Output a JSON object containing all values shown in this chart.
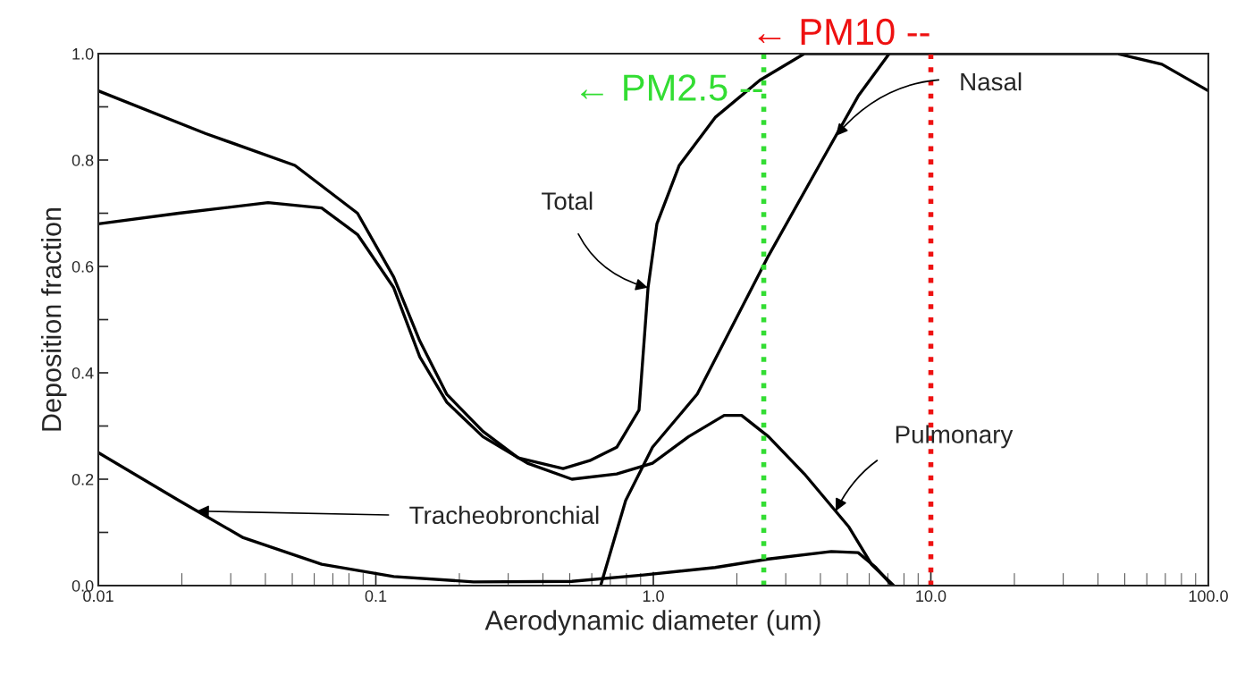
{
  "chart_data": {
    "type": "line",
    "xlabel": "Aerodynamic diameter (um)",
    "ylabel": "Deposition fraction",
    "log": "x",
    "xlim": [
      0.01,
      100
    ],
    "xticks": [
      {
        "value": 0.01,
        "label": "0.01"
      },
      {
        "value": 0.1,
        "label": "0.1"
      },
      {
        "value": 1,
        "label": "1.0"
      },
      {
        "value": 10,
        "label": "10.0"
      },
      {
        "value": 100,
        "label": "100.0"
      }
    ],
    "ylim": [
      0,
      1
    ],
    "yticks": [
      {
        "value": 0,
        "label": "0.0"
      },
      {
        "value": 0.1,
        "label": null
      },
      {
        "value": 0.2,
        "label": "0.2"
      },
      {
        "value": 0.3,
        "label": null
      },
      {
        "value": 0.4,
        "label": "0.4"
      },
      {
        "value": 0.5,
        "label": null
      },
      {
        "value": 0.6,
        "label": "0.6"
      },
      {
        "value": 0.7,
        "label": null
      },
      {
        "value": 0.8,
        "label": "0.8"
      },
      {
        "value": 0.9,
        "label": null
      },
      {
        "value": 1.0,
        "label": "1.0"
      }
    ],
    "grid": false,
    "legend": false,
    "marker": "none",
    "line_style": "solid",
    "series": [
      {
        "color": "#000000",
        "x": [
          0.01,
          0.0243,
          0.0511,
          0.0859,
          0.116,
          0.144,
          0.18,
          0.243,
          0.326,
          0.473,
          0.59,
          0.738,
          0.888,
          0.957,
          1.03,
          1.24,
          1.67,
          2.42,
          3.5,
          5.07,
          46.9,
          68,
          100
        ],
        "values": [
          0.93,
          0.85,
          0.79,
          0.7,
          0.58,
          0.46,
          0.36,
          0.29,
          0.24,
          0.22,
          0.235,
          0.26,
          0.33,
          0.56,
          0.68,
          0.79,
          0.88,
          0.95,
          1.0,
          1.0,
          1.0,
          0.98,
          0.93
        ]
      },
      {
        "color": "#000000",
        "x": [
          0.01,
          0.0195,
          0.0409,
          0.0638,
          0.0859,
          0.116,
          0.144,
          0.18,
          0.243,
          0.352,
          0.509,
          0.738,
          0.993,
          1.34,
          1.8,
          2.08,
          2.6,
          3.5,
          5.07,
          6.11,
          7.35
        ],
        "values": [
          0.68,
          0.7,
          0.72,
          0.71,
          0.66,
          0.56,
          0.43,
          0.345,
          0.28,
          0.23,
          0.2,
          0.21,
          0.23,
          0.28,
          0.32,
          0.32,
          0.28,
          0.21,
          0.11,
          0.04,
          0.0
        ]
      },
      {
        "color": "#000000",
        "x": [
          0.646,
          0.795,
          0.993,
          1.44,
          2.6,
          4.06,
          5.47,
          7.08
        ],
        "values": [
          0.0,
          0.16,
          0.26,
          0.36,
          0.62,
          0.8,
          0.92,
          1.0
        ]
      },
      {
        "color": "#000000",
        "x": [
          0.01,
          0.0195,
          0.0333,
          0.0638,
          0.116,
          0.225,
          0.509,
          0.922,
          1.67,
          2.6,
          4.38,
          5.47,
          6.34,
          7.24
        ],
        "values": [
          0.25,
          0.16,
          0.09,
          0.04,
          0.017,
          0.007,
          0.008,
          0.02,
          0.034,
          0.05,
          0.064,
          0.062,
          0.034,
          0.0
        ]
      }
    ],
    "annotations": [
      {
        "text": "Total",
        "x": 0.957,
        "y": 0.56
      },
      {
        "text": "Nasal",
        "x": 4.54,
        "y": 0.845
      },
      {
        "text": "Pulmonary",
        "x": 4.54,
        "y": 0.14
      },
      {
        "text": "Tracheobronchial",
        "x": 0.0226,
        "y": 0.14
      }
    ],
    "ref_lines": [
      {
        "axis": "x",
        "value": 2.5,
        "label": "← PM2.5 --",
        "color": "#33dd33",
        "line_style": "dotted"
      },
      {
        "axis": "x",
        "value": 10,
        "label": "← PM10 --",
        "color": "#ee1111",
        "line_style": "dotted"
      }
    ]
  }
}
